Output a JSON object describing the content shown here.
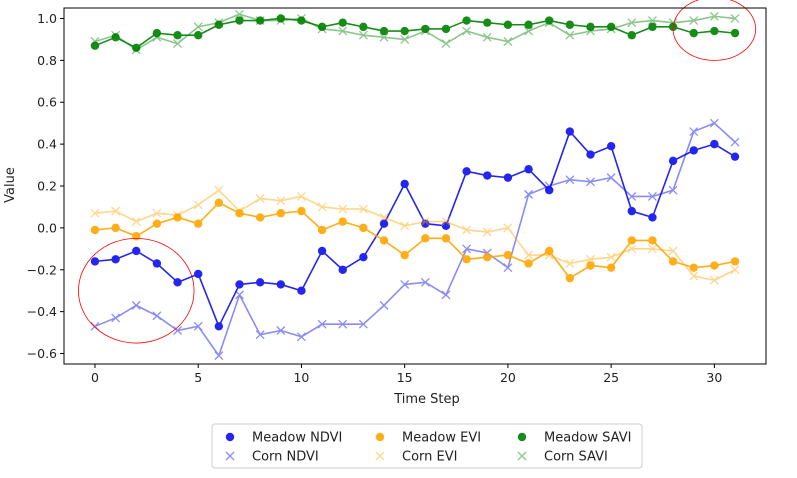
{
  "chart_data": {
    "type": "line",
    "title": "",
    "xlabel": "Time Step",
    "ylabel": "Value",
    "xlim": [
      -1.5,
      32.5
    ],
    "ylim": [
      -0.65,
      1.05
    ],
    "xticks": [
      0,
      5,
      10,
      15,
      20,
      25,
      30
    ],
    "yticks": [
      -0.6,
      -0.4,
      -0.2,
      0.0,
      0.2,
      0.4,
      0.6,
      0.8,
      1.0
    ],
    "ytick_labels": [
      "−0.6",
      "−0.4",
      "−0.2",
      "0.0",
      "0.2",
      "0.4",
      "0.6",
      "0.8",
      "1.0"
    ],
    "x": [
      0,
      1,
      2,
      3,
      4,
      5,
      6,
      7,
      8,
      9,
      10,
      11,
      12,
      13,
      14,
      15,
      16,
      17,
      18,
      19,
      20,
      21,
      22,
      23,
      24,
      25,
      26,
      27,
      28,
      29,
      30,
      31
    ],
    "legend_position": "bottom-center",
    "series": [
      {
        "name": "Meadow NDVI",
        "color": "#0000ee",
        "marker": "circle",
        "alpha": 0.85,
        "values": [
          -0.16,
          -0.15,
          -0.11,
          -0.17,
          -0.26,
          -0.22,
          -0.47,
          -0.27,
          -0.26,
          -0.27,
          -0.3,
          -0.11,
          -0.2,
          -0.14,
          0.02,
          0.21,
          0.02,
          0.01,
          0.27,
          0.25,
          0.24,
          0.28,
          0.18,
          0.46,
          0.35,
          0.39,
          0.08,
          0.05,
          0.32,
          0.37,
          0.4,
          0.34
        ]
      },
      {
        "name": "Corn NDVI",
        "color": "#0000ee",
        "marker": "x",
        "alpha": 0.45,
        "values": [
          -0.47,
          -0.43,
          -0.37,
          -0.42,
          -0.49,
          -0.47,
          -0.61,
          -0.32,
          -0.51,
          -0.49,
          -0.52,
          -0.46,
          -0.46,
          -0.46,
          -0.37,
          -0.27,
          -0.26,
          -0.32,
          -0.1,
          -0.12,
          -0.19,
          0.16,
          0.2,
          0.23,
          0.22,
          0.24,
          0.15,
          0.15,
          0.18,
          0.46,
          0.5,
          0.41
        ]
      },
      {
        "name": "Meadow EVI",
        "color": "#ffa500",
        "marker": "circle",
        "alpha": 0.9,
        "values": [
          -0.01,
          0.0,
          -0.04,
          0.02,
          0.05,
          0.02,
          0.12,
          0.07,
          0.05,
          0.07,
          0.08,
          -0.01,
          0.03,
          0.0,
          -0.06,
          -0.13,
          -0.05,
          -0.05,
          -0.15,
          -0.14,
          -0.13,
          -0.17,
          -0.11,
          -0.24,
          -0.18,
          -0.19,
          -0.06,
          -0.06,
          -0.16,
          -0.19,
          -0.18,
          -0.16
        ]
      },
      {
        "name": "Corn EVI",
        "color": "#ffa500",
        "marker": "x",
        "alpha": 0.45,
        "values": [
          0.07,
          0.08,
          0.03,
          0.07,
          0.06,
          0.11,
          0.18,
          0.08,
          0.14,
          0.13,
          0.15,
          0.1,
          0.09,
          0.09,
          0.05,
          0.01,
          0.03,
          0.03,
          -0.01,
          -0.02,
          0.0,
          -0.13,
          -0.13,
          -0.17,
          -0.15,
          -0.14,
          -0.1,
          -0.1,
          -0.11,
          -0.23,
          -0.25,
          -0.2
        ]
      },
      {
        "name": "Meadow SAVI",
        "color": "#008000",
        "marker": "circle",
        "alpha": 0.9,
        "values": [
          0.87,
          0.91,
          0.86,
          0.93,
          0.92,
          0.92,
          0.97,
          0.99,
          0.99,
          1.0,
          0.99,
          0.96,
          0.98,
          0.96,
          0.94,
          0.94,
          0.95,
          0.95,
          0.99,
          0.98,
          0.97,
          0.97,
          0.99,
          0.97,
          0.96,
          0.96,
          0.92,
          0.96,
          0.96,
          0.93,
          0.94,
          0.93
        ]
      },
      {
        "name": "Corn SAVI",
        "color": "#008000",
        "marker": "x",
        "alpha": 0.45,
        "values": [
          0.89,
          0.92,
          0.85,
          0.91,
          0.88,
          0.96,
          0.98,
          1.02,
          0.99,
          0.99,
          1.0,
          0.95,
          0.94,
          0.92,
          0.91,
          0.9,
          0.94,
          0.88,
          0.94,
          0.91,
          0.89,
          0.94,
          0.98,
          0.92,
          0.94,
          0.95,
          0.98,
          0.99,
          0.98,
          0.99,
          1.01,
          1.0
        ]
      }
    ],
    "annotations": [
      {
        "type": "ellipse",
        "color": "#ff0000",
        "center": [
          2,
          -0.3
        ],
        "radii": [
          2.8,
          0.25
        ]
      },
      {
        "type": "ellipse",
        "color": "#ff0000",
        "center": [
          30,
          0.95
        ],
        "radii": [
          2.0,
          0.15
        ]
      }
    ]
  }
}
